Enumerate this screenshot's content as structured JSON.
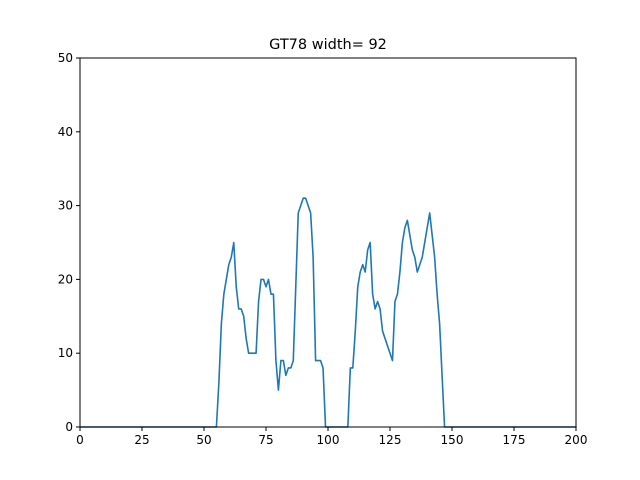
{
  "chart_data": {
    "type": "line",
    "title": "GT78 width= 92",
    "xlabel": "",
    "ylabel": "",
    "xlim": [
      0,
      200
    ],
    "ylim": [
      0,
      50
    ],
    "xticks": [
      0,
      25,
      50,
      75,
      100,
      125,
      150,
      175,
      200
    ],
    "yticks": [
      0,
      10,
      20,
      30,
      40,
      50
    ],
    "xtick_labels": [
      "0",
      "25",
      "50",
      "75",
      "100",
      "125",
      "150",
      "175",
      "200"
    ],
    "ytick_labels": [
      "0",
      "10",
      "20",
      "30",
      "40",
      "50"
    ],
    "grid": false,
    "legend": "none",
    "series": [
      {
        "color": "#1f77b4",
        "x": [
          0,
          55,
          56,
          57,
          58,
          59,
          60,
          61,
          62,
          63,
          64,
          65,
          66,
          67,
          68,
          69,
          70,
          71,
          72,
          73,
          74,
          75,
          76,
          77,
          78,
          79,
          80,
          81,
          82,
          83,
          84,
          85,
          86,
          87,
          88,
          89,
          90,
          91,
          92,
          93,
          94,
          95,
          96,
          97,
          98,
          99,
          100,
          108,
          109,
          110,
          111,
          112,
          113,
          114,
          115,
          116,
          117,
          118,
          119,
          120,
          121,
          122,
          123,
          124,
          125,
          126,
          127,
          128,
          129,
          130,
          131,
          132,
          133,
          134,
          135,
          136,
          137,
          138,
          139,
          140,
          141,
          142,
          143,
          144,
          145,
          146,
          147,
          200
        ],
        "y": [
          0,
          0,
          6,
          14,
          18,
          20,
          22,
          23,
          25,
          19,
          16,
          16,
          15,
          12,
          10,
          10,
          10,
          10,
          17,
          20,
          20,
          19,
          20,
          18,
          18,
          9,
          5,
          9,
          9,
          7,
          8,
          8,
          9,
          19,
          29,
          30,
          31,
          31,
          30,
          29,
          23,
          9,
          9,
          9,
          8,
          0,
          0,
          0,
          8,
          8,
          13,
          19,
          21,
          22,
          21,
          24,
          25,
          18,
          16,
          17,
          16,
          13,
          12,
          11,
          10,
          9,
          17,
          18,
          21,
          25,
          27,
          28,
          26,
          24,
          23,
          21,
          22,
          23,
          25,
          27,
          29,
          26,
          23,
          18,
          14,
          7,
          0,
          0
        ]
      }
    ]
  }
}
